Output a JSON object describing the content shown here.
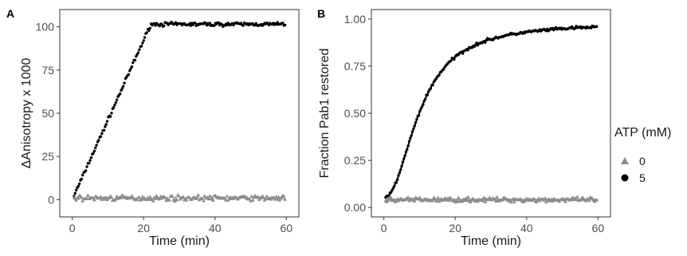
{
  "figure": {
    "colors": {
      "atp_5": "#000000",
      "atp_0": "#8c8c8c",
      "fit_0": "#a0a0a0",
      "frame": "#333333",
      "tick_text": "#4d4d4d"
    }
  },
  "legend": {
    "title": "ATP (mM)",
    "entries": [
      {
        "label": "0",
        "shape": "triangle",
        "color": "#8c8c8c"
      },
      {
        "label": "5",
        "shape": "circle",
        "color": "#000000"
      }
    ]
  },
  "chart_data": [
    {
      "panel": "A",
      "type": "scatter",
      "xlabel": "Time (min)",
      "ylabel": "ΔAnisotropy x 1000",
      "xlim": [
        -3.5,
        63.5
      ],
      "ylim": [
        -10,
        110
      ],
      "xticks": [
        0,
        20,
        40,
        60
      ],
      "yticks": [
        0,
        25,
        50,
        75,
        100
      ],
      "grid": false,
      "legend": "right",
      "series": [
        {
          "name": "5",
          "marker": "circle",
          "color": "#000000",
          "x_start": 0.5,
          "x_step": 0.3,
          "count": 198,
          "profile": {
            "kind": "linear_then_plateau",
            "rise_end_x": 22,
            "plateau": 101.5,
            "noise": 1.6
          }
        },
        {
          "name": "0",
          "marker": "triangle",
          "color": "#8c8c8c",
          "x_start": 0.5,
          "x_step": 0.3,
          "count": 198,
          "profile": {
            "kind": "flat",
            "level": 1.0,
            "noise": 2.2
          }
        }
      ]
    },
    {
      "panel": "B",
      "type": "scatter",
      "xlabel": "Time (min)",
      "ylabel": "Fraction Pab1 restored",
      "xlim": [
        -3.5,
        63.5
      ],
      "ylim": [
        -0.05,
        1.05
      ],
      "xticks": [
        0,
        20,
        40,
        60
      ],
      "yticks": [
        0.0,
        0.25,
        0.5,
        0.75,
        1.0
      ],
      "grid": false,
      "legend": "right",
      "series": [
        {
          "name": "5",
          "marker": "circle",
          "color": "#000000",
          "x_start": 0.5,
          "x_step": 0.3,
          "count": 198,
          "profile": {
            "kind": "hill",
            "base": 0.05,
            "amplitude": 0.93,
            "half_x": 10.2,
            "hill_n": 2.1,
            "noise": 0.012
          }
        },
        {
          "name": "0",
          "marker": "triangle",
          "color": "#8c8c8c",
          "x_start": 0.5,
          "x_step": 0.3,
          "count": 198,
          "profile": {
            "kind": "flat",
            "level": 0.042,
            "noise": 0.018
          }
        }
      ],
      "fits": [
        {
          "series": "5",
          "kind": "hill",
          "base": 0.05,
          "amplitude": 0.93,
          "half_x": 10.2,
          "hill_n": 2.1,
          "x_range": [
            0.5,
            60
          ],
          "color": "#000000"
        },
        {
          "series": "0",
          "kind": "flat",
          "level": 0.042,
          "x_range": [
            0.5,
            60
          ],
          "color": "#a0a0a0"
        }
      ]
    }
  ]
}
